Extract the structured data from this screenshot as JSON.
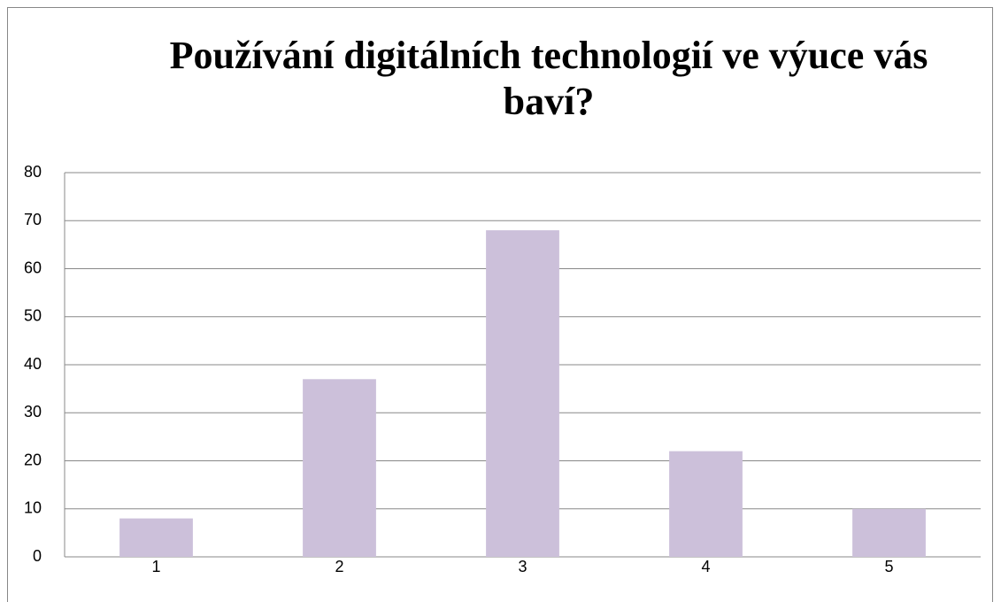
{
  "chart_data": {
    "type": "bar",
    "title": "Používání digitálních technologií ve výuce vás baví?",
    "categories": [
      "1",
      "2",
      "3",
      "4",
      "5"
    ],
    "values": [
      8,
      37,
      68,
      22,
      10
    ],
    "color": "#ccc0da",
    "ylim": [
      0,
      80
    ],
    "yticks": [
      0,
      10,
      20,
      30,
      40,
      50,
      60,
      70,
      80
    ],
    "grid": true
  }
}
